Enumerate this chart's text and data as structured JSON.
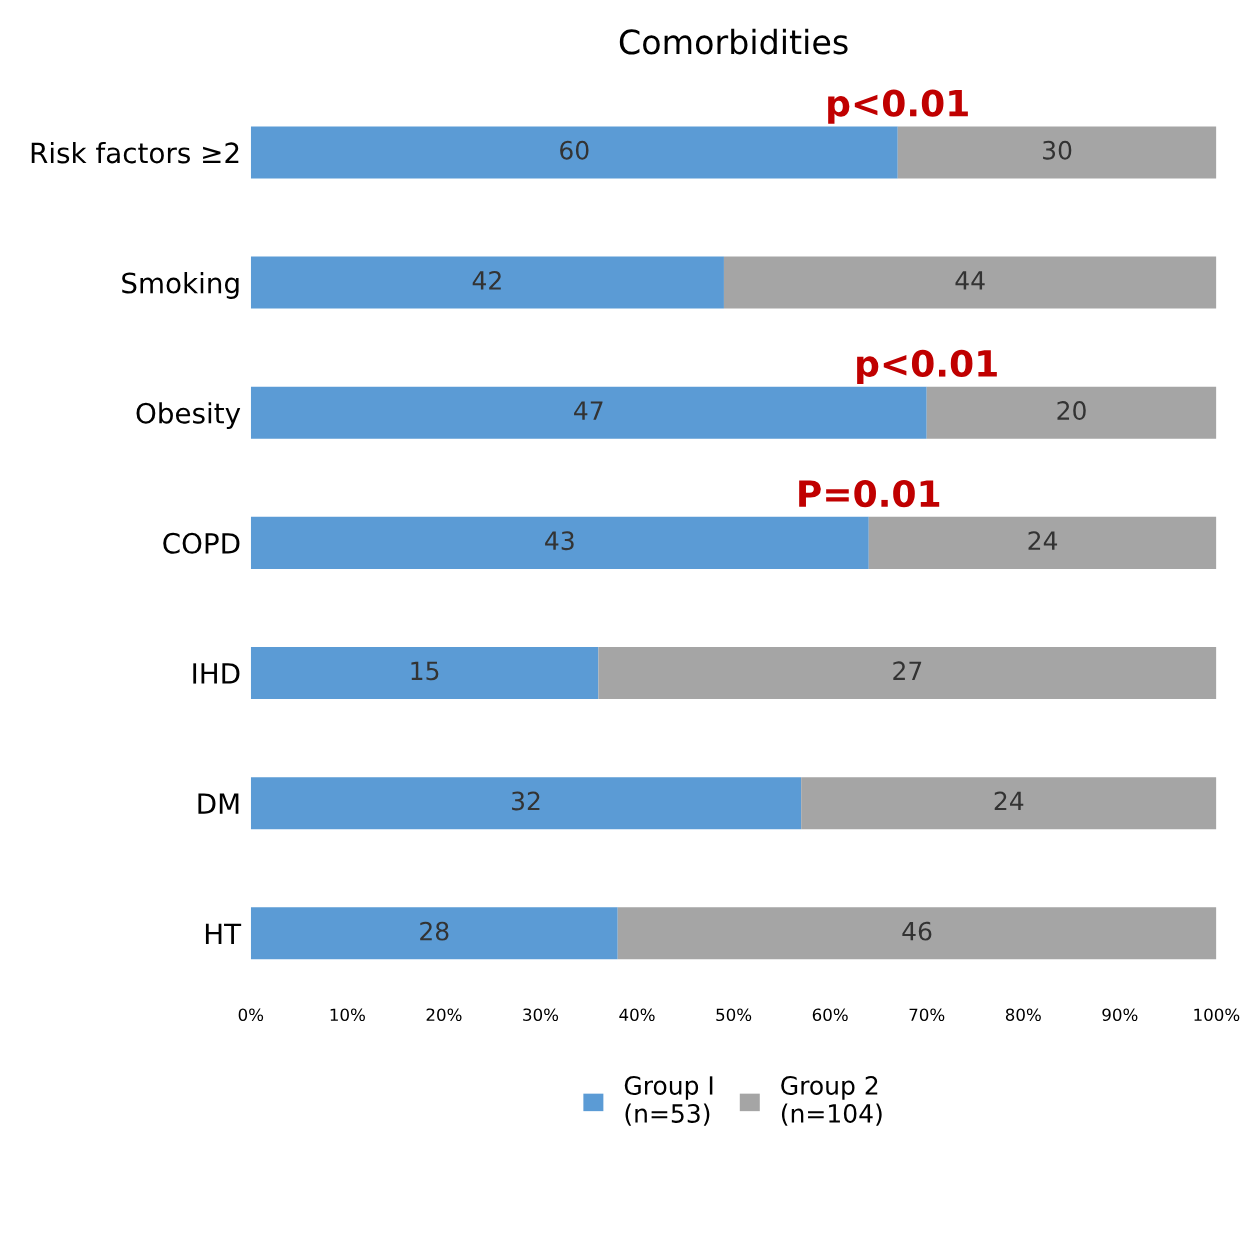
{
  "chart_data": {
    "type": "bar",
    "title": "Comorbidities",
    "orientation": "horizontal",
    "stacked": true,
    "categories": [
      "Risk factors ≥2",
      "Smoking",
      "Obesity",
      "COPD",
      "IHD",
      "DM",
      "HT"
    ],
    "series": [
      {
        "name": "Group I\n(n=53)",
        "color": "#5b9bd5",
        "values": [
          67,
          49,
          70,
          64,
          36,
          57,
          38
        ]
      },
      {
        "name": "Group 2\n(n=104)",
        "color": "#a5a5a5",
        "values": [
          33,
          51,
          30,
          36,
          64,
          43,
          62
        ]
      }
    ],
    "xlim": [
      0,
      100
    ],
    "xticks": [
      {
        "value": 0,
        "label": "0%"
      },
      {
        "value": 10,
        "label": "10%"
      },
      {
        "value": 20,
        "label": "20%"
      },
      {
        "value": 30,
        "label": "30%"
      },
      {
        "value": 40,
        "label": "40%"
      },
      {
        "value": 50,
        "label": "50%"
      },
      {
        "value": 60,
        "label": "60%"
      },
      {
        "value": 70,
        "label": "70%"
      },
      {
        "value": 80,
        "label": "80%"
      },
      {
        "value": 90,
        "label": "90%"
      },
      {
        "value": 100,
        "label": "100%"
      }
    ],
    "annotations": [
      {
        "text": "p<0.01",
        "x": 67,
        "y": "Risk factors ≥2"
      },
      {
        "text": "p<0.01",
        "x": 70,
        "y": "Obesity"
      },
      {
        "text": "P=0.01",
        "x": 64,
        "y": "COPD"
      },
      "60",
      "30",
      "42",
      "44",
      "47",
      "20",
      "43",
      "24",
      "15",
      "27",
      "32",
      "24",
      "28",
      "46"
    ],
    "legend": "bottom",
    "grid": false
  }
}
